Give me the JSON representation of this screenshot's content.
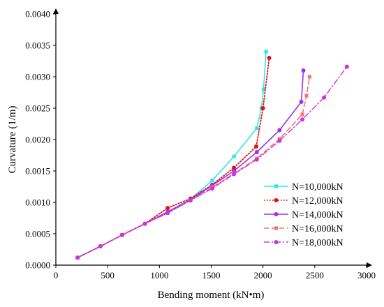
{
  "chart_data": {
    "type": "line",
    "title": "",
    "xlabel": "Bending moment (kN•m)",
    "ylabel": "Curvature (1/m)",
    "xlim": [
      0,
      3000
    ],
    "ylim": [
      0,
      0.004
    ],
    "xticks": [
      "0",
      "500",
      "1000",
      "1500",
      "2000",
      "2500",
      "3000"
    ],
    "yticks": [
      "0.0000",
      "0.0005",
      "0.0010",
      "0.0015",
      "0.0020",
      "0.0025",
      "0.0030",
      "0.0035",
      "0.0040"
    ],
    "grid": false,
    "legend_position": "right",
    "series": [
      {
        "name": "N=10,000kN",
        "color": "#33e6e6",
        "line_style": "solid",
        "marker": "square",
        "points": [
          [
            210,
            0.00012
          ],
          [
            430,
            0.0003
          ],
          [
            640,
            0.00048
          ],
          [
            860,
            0.00066
          ],
          [
            1080,
            0.00085
          ],
          [
            1300,
            0.00105
          ],
          [
            1510,
            0.00135
          ],
          [
            1720,
            0.00173
          ],
          [
            1940,
            0.00218
          ],
          [
            1985,
            0.0025
          ],
          [
            2005,
            0.0028
          ],
          [
            2030,
            0.0034
          ]
        ]
      },
      {
        "name": "N=12,000kN",
        "color": "#dd1111",
        "line_style": "dotted",
        "marker": "circle",
        "points": [
          [
            210,
            0.00012
          ],
          [
            430,
            0.0003
          ],
          [
            640,
            0.00048
          ],
          [
            860,
            0.00066
          ],
          [
            1080,
            0.00091
          ],
          [
            1300,
            0.00106
          ],
          [
            1510,
            0.00128
          ],
          [
            1720,
            0.00155
          ],
          [
            1935,
            0.00189
          ],
          [
            2000,
            0.0025
          ],
          [
            2060,
            0.0033
          ]
        ]
      },
      {
        "name": "N=14,000kN",
        "color": "#9933ee",
        "line_style": "solid",
        "marker": "circle",
        "points": [
          [
            210,
            0.00012
          ],
          [
            430,
            0.0003
          ],
          [
            640,
            0.00048
          ],
          [
            860,
            0.00066
          ],
          [
            1080,
            0.00085
          ],
          [
            1300,
            0.00104
          ],
          [
            1510,
            0.00127
          ],
          [
            1720,
            0.0015
          ],
          [
            1940,
            0.0018
          ],
          [
            2160,
            0.00215
          ],
          [
            2370,
            0.0026
          ],
          [
            2390,
            0.0031
          ]
        ]
      },
      {
        "name": "N=16,000kN",
        "color": "#ee7777",
        "line_style": "dashed",
        "marker": "square",
        "points": [
          [
            210,
            0.00012
          ],
          [
            430,
            0.0003
          ],
          [
            640,
            0.00048
          ],
          [
            860,
            0.00066
          ],
          [
            1080,
            0.00083
          ],
          [
            1300,
            0.00103
          ],
          [
            1510,
            0.00124
          ],
          [
            1720,
            0.00146
          ],
          [
            1940,
            0.0017
          ],
          [
            2160,
            0.00201
          ],
          [
            2380,
            0.0024
          ],
          [
            2420,
            0.0027
          ],
          [
            2450,
            0.003
          ]
        ]
      },
      {
        "name": "N=18,000kN",
        "color": "#cc33dd",
        "line_style": "dashdot",
        "marker": "circle",
        "points": [
          [
            210,
            0.00012
          ],
          [
            430,
            0.0003
          ],
          [
            640,
            0.00048
          ],
          [
            860,
            0.00066
          ],
          [
            1080,
            0.00083
          ],
          [
            1300,
            0.00103
          ],
          [
            1510,
            0.00122
          ],
          [
            1720,
            0.00145
          ],
          [
            1940,
            0.00168
          ],
          [
            2160,
            0.00198
          ],
          [
            2380,
            0.00232
          ],
          [
            2590,
            0.00267
          ],
          [
            2810,
            0.00316
          ]
        ]
      }
    ]
  }
}
